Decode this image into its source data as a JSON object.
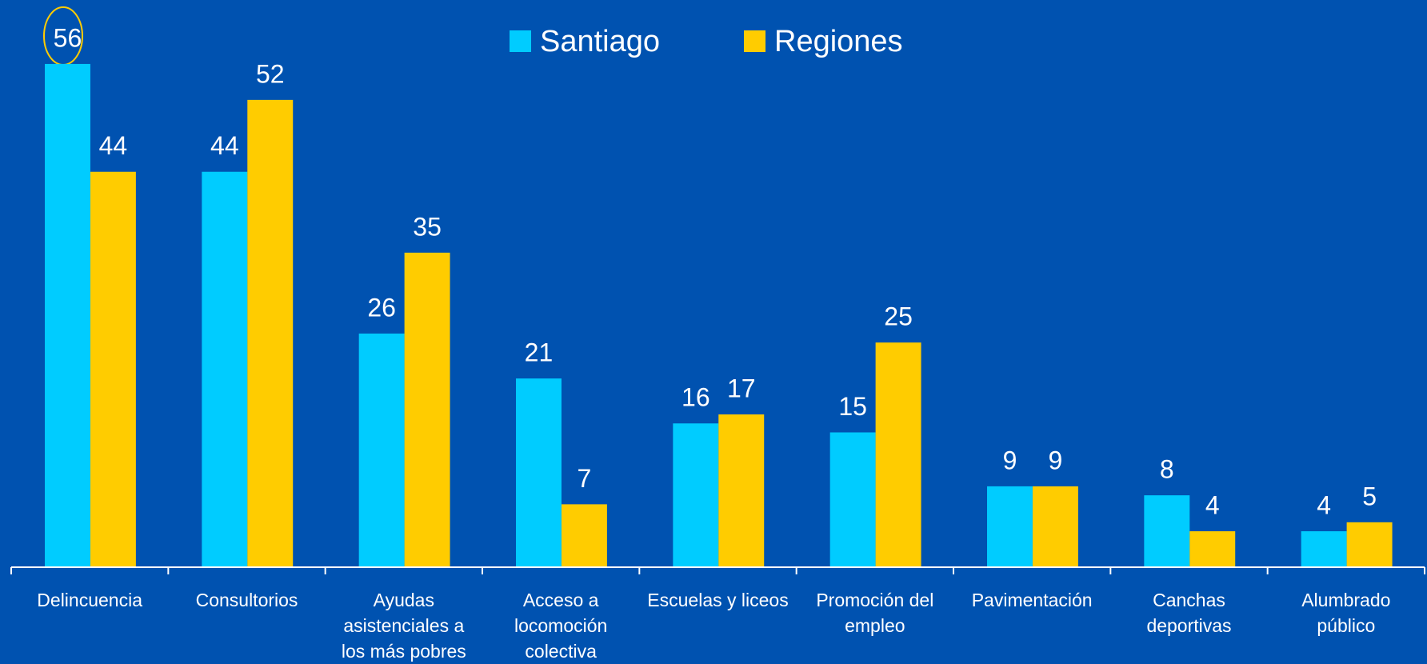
{
  "chart_data": {
    "type": "bar",
    "categories": [
      "Delincuencia",
      "Consultorios",
      "Ayudas asistenciales a los más pobres",
      "Acceso a locomoción colectiva",
      "Escuelas y liceos",
      "Promoción del empleo",
      "Pavimentación",
      "Canchas deportivas",
      "Alumbrado público"
    ],
    "series": [
      {
        "name": "Santiago",
        "color": "#00ccff",
        "values": [
          56,
          44,
          26,
          21,
          16,
          15,
          9,
          8,
          4
        ]
      },
      {
        "name": "Regiones",
        "color": "#ffcc00",
        "values": [
          44,
          52,
          35,
          7,
          17,
          25,
          9,
          4,
          5
        ]
      }
    ],
    "ylim": [
      0,
      60
    ]
  }
}
